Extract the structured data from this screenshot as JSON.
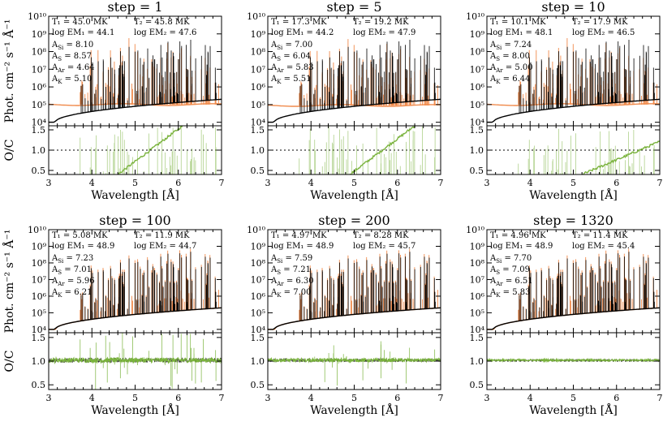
{
  "figure": {
    "xlabel": "Wavelength [Å]",
    "ylabel_top": "Phot. cm⁻² s⁻¹ Å⁻¹",
    "ylabel_bottom": "O/C",
    "xticks": [
      "3",
      "4",
      "5",
      "6",
      "7"
    ],
    "ytick_top": [
      "10⁴",
      "10⁵",
      "10⁶",
      "10⁷",
      "10⁸",
      "10⁹",
      "10¹⁰"
    ],
    "ytick_bottom": [
      "0.5",
      "1.0",
      "1.5"
    ],
    "colors": {
      "observed": "#000000",
      "model": "#f08a4b",
      "ratio": "#7ab33d",
      "axis": "#000000"
    }
  },
  "chart_data": [
    {
      "type": "line",
      "title": "step = 1",
      "xlim": [
        3,
        7
      ],
      "ylim_log10": [
        3.8,
        10
      ],
      "ratio_ylim": [
        0.4,
        1.6
      ],
      "ratio_ref": 1.0,
      "params": {
        "T1": "T₁ = 45.0 MK",
        "T2": "T₂ = 45.8 MK",
        "EM1": "log EM₁ = 44.1",
        "EM2": "log EM₂ = 47.6",
        "ASi": "A_Si = 8.10",
        "AS": "A_S = 8.57",
        "AAr": "A_Ar = 4.64",
        "AK": "A_K = 5.10"
      },
      "model": "flat-orange",
      "fit": "poor"
    },
    {
      "type": "line",
      "title": "step = 5",
      "xlim": [
        3,
        7
      ],
      "ylim_log10": [
        3.8,
        10
      ],
      "ratio_ylim": [
        0.4,
        1.6
      ],
      "ratio_ref": 1.0,
      "params": {
        "T1": "T₁ = 17.3 MK",
        "T2": "T₂ = 19.2 MK",
        "EM1": "log EM₁ = 44.2",
        "EM2": "log EM₂ = 47.9",
        "ASi": "A_Si = 7.00",
        "AS": "A_S = 6.04",
        "AAr": "A_Ar = 5.83",
        "AK": "A_K = 5.51"
      },
      "model": "flat-orange",
      "fit": "poor"
    },
    {
      "type": "line",
      "title": "step = 10",
      "xlim": [
        3,
        7
      ],
      "ylim_log10": [
        3.8,
        10
      ],
      "ratio_ylim": [
        0.4,
        1.6
      ],
      "ratio_ref": 1.0,
      "params": {
        "T1": "T₁ = 10.1 MK",
        "T2": "T₂ = 17.9 MK",
        "EM1": "log EM₁ = 48.1",
        "EM2": "log EM₂ = 46.5",
        "ASi": "A_Si = 7.24",
        "AS": "A_S = 8.00",
        "AAr": "A_Ar = 5.00",
        "AK": "A_K = 6.44"
      },
      "model": "flat-orange",
      "fit": "poor"
    },
    {
      "type": "line",
      "title": "step = 100",
      "xlim": [
        3,
        7
      ],
      "ylim_log10": [
        3.8,
        10
      ],
      "ratio_ylim": [
        0.4,
        1.6
      ],
      "ratio_ref": 1.0,
      "params": {
        "T1": "T₁ = 5.08 MK",
        "T2": "T₂ = 11.9 MK",
        "EM1": "log EM₁ = 48.9",
        "EM2": "log EM₂ = 44.7",
        "ASi": "A_Si = 7.23",
        "AS": "A_S = 7.01",
        "AAr": "A_Ar = 5.96",
        "AK": "A_K = 6.21"
      },
      "model": "matched",
      "fit": "fair"
    },
    {
      "type": "line",
      "title": "step = 200",
      "xlim": [
        3,
        7
      ],
      "ylim_log10": [
        3.8,
        10
      ],
      "ratio_ylim": [
        0.4,
        1.6
      ],
      "ratio_ref": 1.0,
      "params": {
        "T1": "T₁ = 4.97 MK",
        "T2": "T₂ = 8.28 MK",
        "EM1": "log EM₁ = 48.9",
        "EM2": "log EM₂ = 45.7",
        "ASi": "A_Si = 7.59",
        "AS": "A_S = 7.21",
        "AAr": "A_Ar = 6.30",
        "AK": "A_K = 7.00"
      },
      "model": "matched",
      "fit": "good"
    },
    {
      "type": "line",
      "title": "step = 1320",
      "xlim": [
        3,
        7
      ],
      "ylim_log10": [
        3.8,
        10
      ],
      "ratio_ylim": [
        0.4,
        1.6
      ],
      "ratio_ref": 1.0,
      "params": {
        "T1": "T₁ = 4.96 MK",
        "T2": "T₂ = 11.4 MK",
        "EM1": "log EM₁ = 48.9",
        "EM2": "log EM₂ = 45.4",
        "ASi": "A_Si = 7.70",
        "AS": "A_S = 7.09",
        "AAr": "A_Ar = 6.51",
        "AK": "A_K = 5.83"
      },
      "model": "matched",
      "fit": "excellent"
    }
  ]
}
